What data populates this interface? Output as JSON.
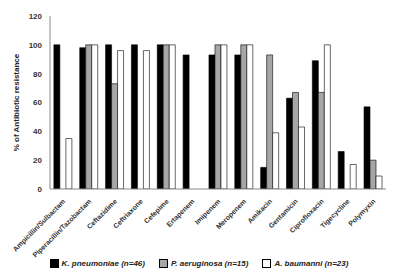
{
  "chart_data": {
    "type": "bar",
    "y_label": "% of Antibiotic resistance",
    "categories": [
      "Ampicillin/Sulbactam",
      "Piperacillin/Tazobactam",
      "Ceftazidime",
      "Ceftriaxone",
      "Cefepime",
      "Ertapenem",
      "Imipenem",
      "Meropenem",
      "Amikacin",
      "Gentamicin",
      "Ciprofloxacin",
      "Tigecycline",
      "Polymyxin"
    ],
    "series": [
      {
        "name": "K. pneumoniae (n=46)",
        "color": "#000000",
        "values": [
          100,
          98,
          100,
          100,
          100,
          93,
          93,
          93,
          15,
          63,
          89,
          26,
          57
        ]
      },
      {
        "name": "P. aeruginosa (n=15)",
        "color": "#a6a6a6",
        "values": [
          null,
          100,
          73,
          null,
          100,
          null,
          100,
          100,
          93,
          67,
          67,
          null,
          20
        ]
      },
      {
        "name": "A. baumanni (n=23)",
        "color": "#ffffff",
        "values": [
          35,
          100,
          96,
          96,
          100,
          null,
          100,
          100,
          39,
          43,
          100,
          17,
          9
        ]
      }
    ],
    "ylim": [
      0,
      120
    ],
    "yticks": [
      0,
      20,
      40,
      60,
      80,
      100,
      120
    ],
    "grid": false,
    "legend": "bottom"
  }
}
